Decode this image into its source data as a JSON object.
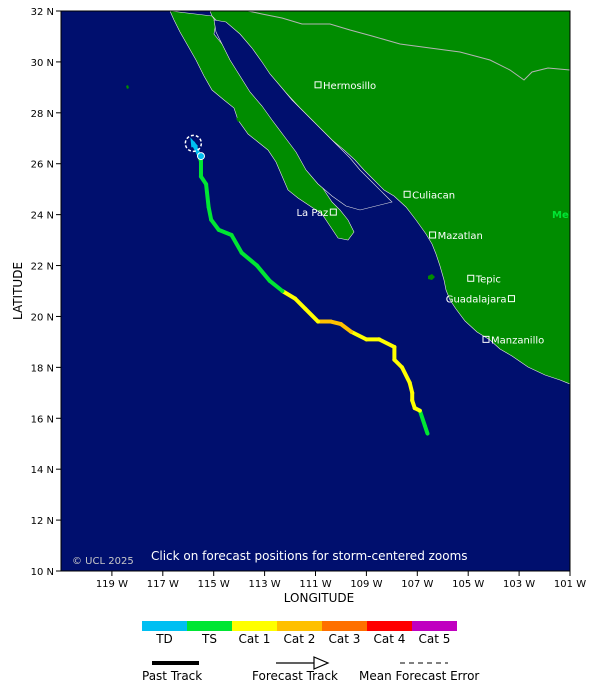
{
  "map": {
    "xlabel": "LONGITUDE",
    "ylabel": "LATITUDE",
    "lon_range": [
      -121,
      -101
    ],
    "lat_range": [
      10,
      32
    ],
    "lon_ticks": [
      {
        "value": -119,
        "label": "119 W"
      },
      {
        "value": -117,
        "label": "117 W"
      },
      {
        "value": -115,
        "label": "115 W"
      },
      {
        "value": -113,
        "label": "113 W"
      },
      {
        "value": -111,
        "label": "111 W"
      },
      {
        "value": -109,
        "label": "109 W"
      },
      {
        "value": -107,
        "label": "107 W"
      },
      {
        "value": -105,
        "label": "105 W"
      },
      {
        "value": -103,
        "label": "103 W"
      },
      {
        "value": -101,
        "label": "101 W"
      }
    ],
    "lat_ticks": [
      {
        "value": 10,
        "label": "10 N"
      },
      {
        "value": 12,
        "label": "12 N"
      },
      {
        "value": 14,
        "label": "14 N"
      },
      {
        "value": 16,
        "label": "16 N"
      },
      {
        "value": 18,
        "label": "18 N"
      },
      {
        "value": 20,
        "label": "20 N"
      },
      {
        "value": 22,
        "label": "22 N"
      },
      {
        "value": 24,
        "label": "24 N"
      },
      {
        "value": 26,
        "label": "26 N"
      },
      {
        "value": 28,
        "label": "28 N"
      },
      {
        "value": 30,
        "label": "30 N"
      },
      {
        "value": 32,
        "label": "32 N"
      }
    ],
    "cities": [
      {
        "name": "Hermosillo",
        "lon": -110.9,
        "lat": 29.1
      },
      {
        "name": "La Paz",
        "lon": -110.3,
        "lat": 24.1,
        "label_left": true
      },
      {
        "name": "Culiacan",
        "lon": -107.4,
        "lat": 24.8
      },
      {
        "name": "Mazatlan",
        "lon": -106.4,
        "lat": 23.2
      },
      {
        "name": "Tepic",
        "lon": -104.9,
        "lat": 21.5
      },
      {
        "name": "Guadalajara",
        "lon": -103.3,
        "lat": 20.7,
        "label_left": true
      },
      {
        "name": "Manzanillo",
        "lon": -104.3,
        "lat": 19.1
      }
    ],
    "country_label": "Me",
    "note": "Click on forecast positions for storm-centered zooms",
    "copyright": "© UCL 2025",
    "colors": {
      "ocean": "#000f6e",
      "land": "#008c00",
      "border": "#b4b4b4",
      "frame": "#000000"
    }
  },
  "track": {
    "points": [
      {
        "lon": -106.6,
        "lat": 15.4,
        "cat": "TS"
      },
      {
        "lon": -106.7,
        "lat": 15.7,
        "cat": "TS"
      },
      {
        "lon": -106.9,
        "lat": 16.3,
        "cat": "TS"
      },
      {
        "lon": -107.1,
        "lat": 16.4,
        "cat": "Cat 1"
      },
      {
        "lon": -107.2,
        "lat": 16.7,
        "cat": "Cat 1"
      },
      {
        "lon": -107.2,
        "lat": 17.0,
        "cat": "Cat 1"
      },
      {
        "lon": -107.3,
        "lat": 17.4,
        "cat": "Cat 1"
      },
      {
        "lon": -107.6,
        "lat": 18.0,
        "cat": "Cat 1"
      },
      {
        "lon": -107.9,
        "lat": 18.3,
        "cat": "Cat 1"
      },
      {
        "lon": -107.9,
        "lat": 18.8,
        "cat": "Cat 1"
      },
      {
        "lon": -108.5,
        "lat": 19.1,
        "cat": "Cat 1"
      },
      {
        "lon": -109.0,
        "lat": 19.1,
        "cat": "Cat 1"
      },
      {
        "lon": -109.6,
        "lat": 19.4,
        "cat": "Cat 1"
      },
      {
        "lon": -110.0,
        "lat": 19.7,
        "cat": "Cat 2"
      },
      {
        "lon": -110.4,
        "lat": 19.8,
        "cat": "Cat 2"
      },
      {
        "lon": -110.9,
        "lat": 19.8,
        "cat": "Cat 2"
      },
      {
        "lon": -111.4,
        "lat": 20.3,
        "cat": "Cat 1"
      },
      {
        "lon": -111.8,
        "lat": 20.7,
        "cat": "Cat 1"
      },
      {
        "lon": -112.3,
        "lat": 21.0,
        "cat": "Cat 1"
      },
      {
        "lon": -112.8,
        "lat": 21.4,
        "cat": "TS"
      },
      {
        "lon": -113.3,
        "lat": 22.0,
        "cat": "TS"
      },
      {
        "lon": -113.9,
        "lat": 22.5,
        "cat": "TS"
      },
      {
        "lon": -114.3,
        "lat": 23.2,
        "cat": "TS"
      },
      {
        "lon": -114.8,
        "lat": 23.4,
        "cat": "TS"
      },
      {
        "lon": -115.1,
        "lat": 23.8,
        "cat": "TS"
      },
      {
        "lon": -115.2,
        "lat": 24.3,
        "cat": "TS"
      },
      {
        "lon": -115.3,
        "lat": 25.2,
        "cat": "TS"
      },
      {
        "lon": -115.5,
        "lat": 25.5,
        "cat": "TS"
      },
      {
        "lon": -115.5,
        "lat": 26.1,
        "cat": "TS"
      },
      {
        "lon": -115.6,
        "lat": 26.4,
        "cat": "TS"
      },
      {
        "lon": -115.8,
        "lat": 26.8,
        "cat": "TD"
      }
    ],
    "current_position": {
      "lon": -115.8,
      "lat": 26.8
    },
    "last_point": {
      "lon": -115.5,
      "lat": 26.3
    }
  },
  "legend": {
    "categories": [
      {
        "label": "TD",
        "color": "#00bff2"
      },
      {
        "label": "TS",
        "color": "#00e633"
      },
      {
        "label": "Cat 1",
        "color": "#ffff00"
      },
      {
        "label": "Cat 2",
        "color": "#ffc000"
      },
      {
        "label": "Cat 3",
        "color": "#ff7000"
      },
      {
        "label": "Cat 4",
        "color": "#ff0000"
      },
      {
        "label": "Cat 5",
        "color": "#c000c0"
      }
    ],
    "past_track": "Past Track",
    "forecast_track": "Forecast Track",
    "mean_error": "Mean Forecast Error"
  }
}
